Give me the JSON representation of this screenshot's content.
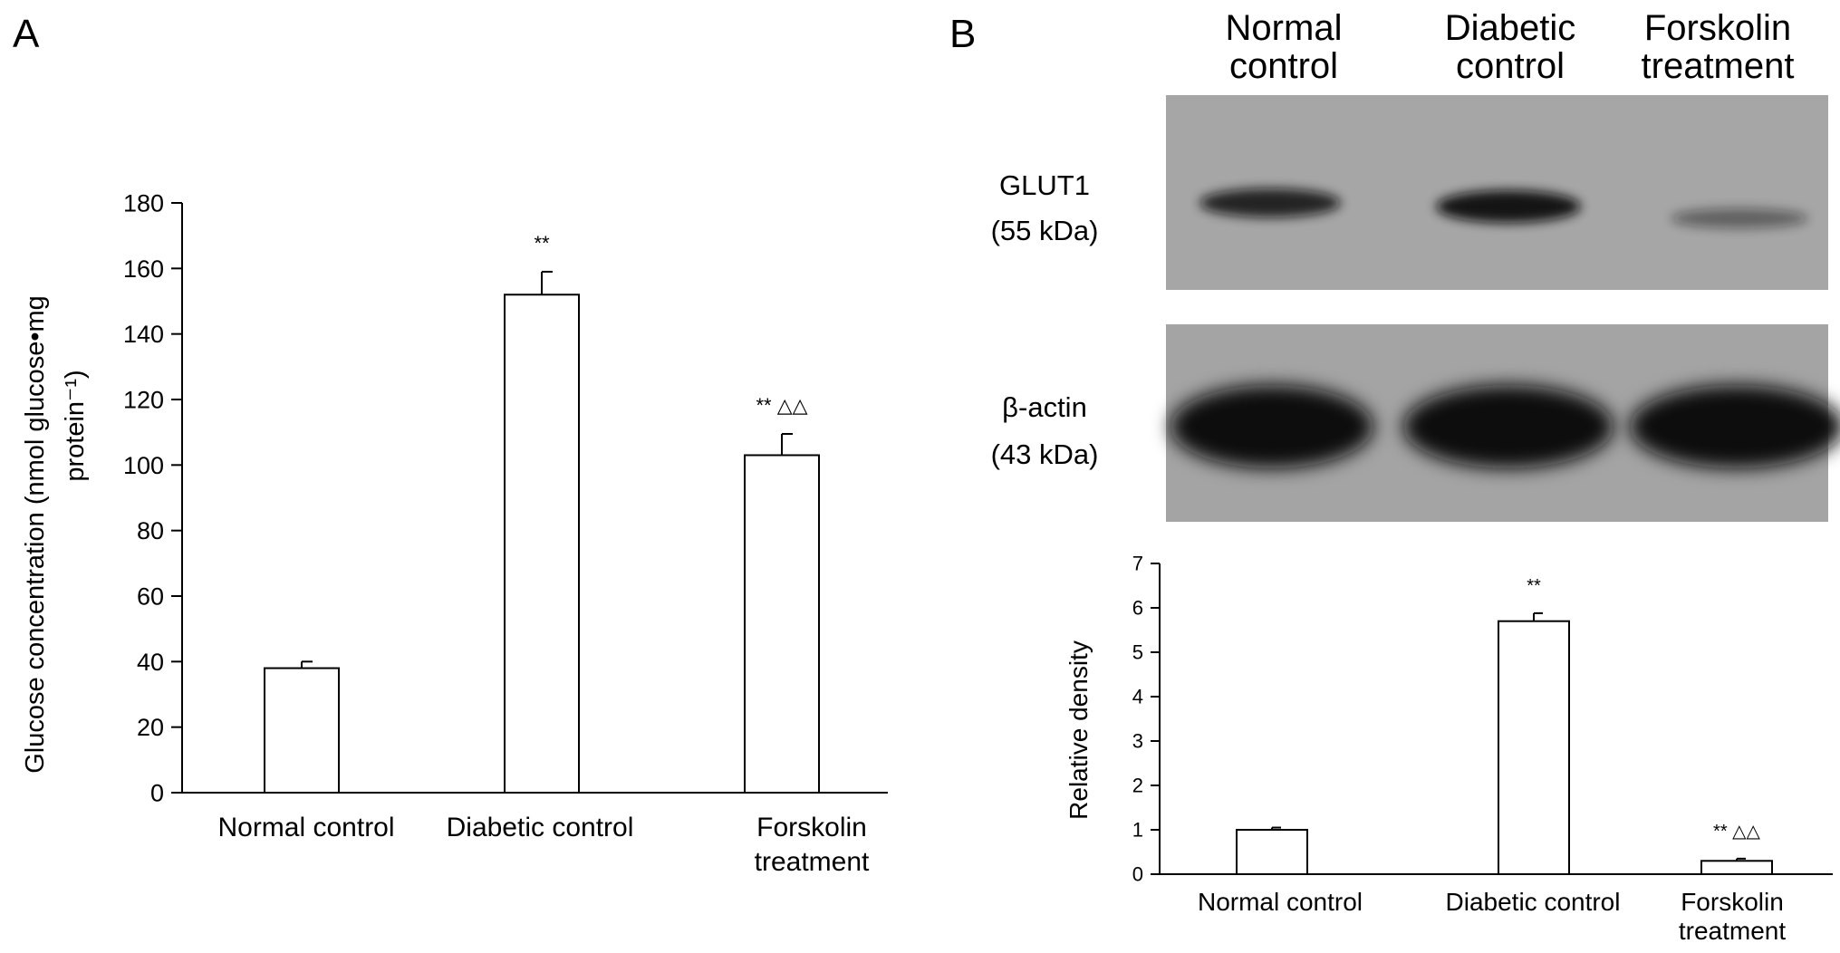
{
  "panel_a": {
    "letter": "A",
    "ylabel_line1": "Glucose concentration (nmol glucose•mg",
    "ylabel_line2": "protein⁻¹)",
    "xtick_lines": [
      [
        "Normal control"
      ],
      [
        "Diabetic control"
      ],
      [
        "Forskolin",
        "treatment"
      ]
    ]
  },
  "panel_b": {
    "letter": "B",
    "blot": {
      "column_headers": [
        [
          "Normal",
          "control"
        ],
        [
          "Diabetic",
          "control"
        ],
        [
          "Forskolin",
          "treatment"
        ]
      ],
      "row1_label": [
        "GLUT1",
        "(55 kDa)"
      ],
      "row2_label": [
        "β-actin",
        "(43 kDa)"
      ],
      "glut1_band_intensity": [
        0.85,
        0.95,
        0.45
      ],
      "actin_band_intensity": [
        1.0,
        1.0,
        1.0
      ]
    },
    "ylabel": "Relative density",
    "xtick_lines": [
      [
        "Normal control"
      ],
      [
        "Diabetic control"
      ],
      [
        "Forskolin",
        "treatment"
      ]
    ]
  },
  "chart_data": [
    {
      "type": "bar",
      "categories": [
        "Normal control",
        "Diabetic control",
        "Forskolin treatment"
      ],
      "values": [
        38,
        152,
        103
      ],
      "errors": [
        2,
        7,
        6.5
      ],
      "annotations": [
        "",
        "**",
        "**  △△"
      ],
      "ylim": [
        0,
        180
      ],
      "yticks": [
        0,
        20,
        40,
        60,
        80,
        100,
        120,
        140,
        160,
        180
      ],
      "ylabel": "Glucose concentration (nmol glucose•mg protein⁻¹)",
      "xlabel": "",
      "grid": false
    },
    {
      "type": "bar",
      "categories": [
        "Normal control",
        "Diabetic control",
        "Forskolin treatment"
      ],
      "values": [
        1.0,
        5.7,
        0.3
      ],
      "errors": [
        0.05,
        0.18,
        0.05
      ],
      "annotations": [
        "",
        "**",
        "**  △△"
      ],
      "ylim": [
        0,
        7
      ],
      "yticks": [
        0,
        1,
        2,
        3,
        4,
        5,
        6,
        7
      ],
      "ylabel": "Relative density",
      "xlabel": "",
      "grid": false
    }
  ]
}
